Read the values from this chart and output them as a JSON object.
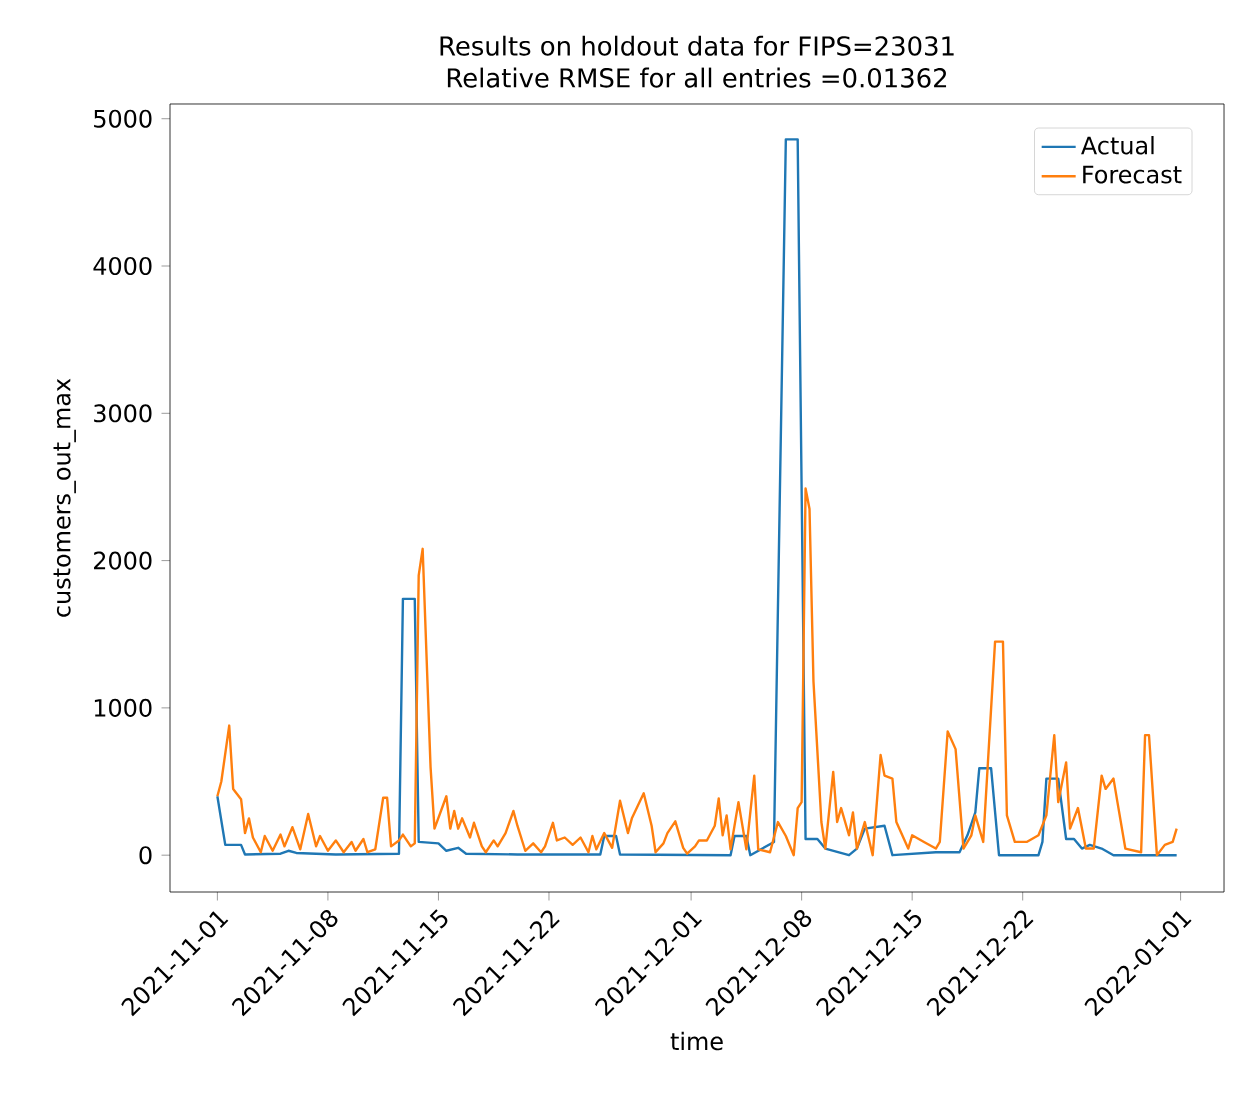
{
  "chart_data": {
    "type": "line",
    "title": "Results on holdout data for FIPS=23031",
    "subtitle": "Relative RMSE for all entries =0.01362",
    "xlabel": "time",
    "ylabel": "customers_out_max",
    "xlim": [
      "2021-10-29T00:00",
      "2022-01-03T18:00"
    ],
    "ylim": [
      -250,
      5100
    ],
    "xticks": [
      "2021-11-01",
      "2021-11-08",
      "2021-11-15",
      "2021-11-22",
      "2021-12-01",
      "2021-12-08",
      "2021-12-15",
      "2021-12-22",
      "2022-01-01"
    ],
    "yticks": [
      0,
      1000,
      2000,
      3000,
      4000,
      5000
    ],
    "legend": "top right",
    "series": [
      {
        "name": "Actual",
        "color": "#1f77b4",
        "x": [
          "2021-11-01T00:00",
          "2021-11-01T12:00",
          "2021-11-02T12:00",
          "2021-11-02T18:00",
          "2021-11-05T00:00",
          "2021-11-05T12:00",
          "2021-11-06T00:00",
          "2021-11-08T12:00",
          "2021-11-12T12:00",
          "2021-11-12T18:00",
          "2021-11-13T12:00",
          "2021-11-13T18:00",
          "2021-11-15T00:00",
          "2021-11-15T12:00",
          "2021-11-16T06:00",
          "2021-11-16T18:00",
          "2021-11-20T00:00",
          "2021-11-25T06:00",
          "2021-11-25T12:00",
          "2021-11-26T06:00",
          "2021-11-26T12:00",
          "2021-12-03T12:00",
          "2021-12-03T18:00",
          "2021-12-04T12:00",
          "2021-12-04T18:00",
          "2021-12-06T06:00",
          "2021-12-07T00:00",
          "2021-12-07T18:00",
          "2021-12-08T06:00",
          "2021-12-09T00:00",
          "2021-12-09T12:00",
          "2021-12-11T00:00",
          "2021-12-11T12:00",
          "2021-12-12T00:00",
          "2021-12-13T06:00",
          "2021-12-13T18:00",
          "2021-12-16T12:00",
          "2021-12-18T00:00",
          "2021-12-18T12:00",
          "2021-12-19T00:00",
          "2021-12-19T06:00",
          "2021-12-20T00:00",
          "2021-12-20T12:00",
          "2021-12-23T00:00",
          "2021-12-23T06:00",
          "2021-12-23T12:00",
          "2021-12-24T06:00",
          "2021-12-24T18:00",
          "2021-12-25T06:00",
          "2021-12-25T18:00",
          "2021-12-26T06:00",
          "2021-12-27T00:00",
          "2021-12-27T18:00",
          "2021-12-31T18:00"
        ],
        "values": [
          400,
          70,
          70,
          5,
          10,
          30,
          15,
          5,
          10,
          1740,
          1740,
          90,
          80,
          30,
          50,
          10,
          5,
          5,
          130,
          130,
          5,
          0,
          130,
          130,
          0,
          90,
          4860,
          4860,
          110,
          110,
          45,
          0,
          45,
          180,
          200,
          0,
          20,
          20,
          135,
          290,
          590,
          590,
          0,
          0,
          90,
          520,
          520,
          110,
          110,
          45,
          70,
          45,
          0,
          0
        ]
      },
      {
        "name": "Forecast",
        "color": "#ff7f0e",
        "x": [
          "2021-11-01T00:00",
          "2021-11-01T06:00",
          "2021-11-01T18:00",
          "2021-11-02T00:00",
          "2021-11-02T12:00",
          "2021-11-02T18:00",
          "2021-11-03T00:00",
          "2021-11-03T06:00",
          "2021-11-03T18:00",
          "2021-11-04T00:00",
          "2021-11-04T12:00",
          "2021-11-05T00:00",
          "2021-11-05T06:00",
          "2021-11-05T18:00",
          "2021-11-06T06:00",
          "2021-11-06T18:00",
          "2021-11-07T06:00",
          "2021-11-07T12:00",
          "2021-11-08T00:00",
          "2021-11-08T12:00",
          "2021-11-09T00:00",
          "2021-11-09T12:00",
          "2021-11-09T18:00",
          "2021-11-10T06:00",
          "2021-11-10T12:00",
          "2021-11-11T00:00",
          "2021-11-11T12:00",
          "2021-11-11T18:00",
          "2021-11-12T00:00",
          "2021-11-12T12:00",
          "2021-11-12T18:00",
          "2021-11-13T06:00",
          "2021-11-13T12:00",
          "2021-11-13T18:00",
          "2021-11-14T00:00",
          "2021-11-14T12:00",
          "2021-11-14T18:00",
          "2021-11-15T12:00",
          "2021-11-15T18:00",
          "2021-11-16T00:00",
          "2021-11-16T06:00",
          "2021-11-16T12:00",
          "2021-11-17T00:00",
          "2021-11-17T06:00",
          "2021-11-17T18:00",
          "2021-11-18T00:00",
          "2021-11-18T12:00",
          "2021-11-18T18:00",
          "2021-11-19T06:00",
          "2021-11-19T18:00",
          "2021-11-20T00:00",
          "2021-11-20T12:00",
          "2021-11-21T00:00",
          "2021-11-21T12:00",
          "2021-11-21T18:00",
          "2021-11-22T06:00",
          "2021-11-22T12:00",
          "2021-11-23T00:00",
          "2021-11-23T12:00",
          "2021-11-24T00:00",
          "2021-11-24T12:00",
          "2021-11-24T18:00",
          "2021-11-25T00:00",
          "2021-11-25T12:00",
          "2021-11-26T00:00",
          "2021-11-26T12:00",
          "2021-11-27T00:00",
          "2021-11-27T06:00",
          "2021-11-28T00:00",
          "2021-11-28T12:00",
          "2021-11-28T18:00",
          "2021-11-29T06:00",
          "2021-11-29T12:00",
          "2021-11-30T00:00",
          "2021-11-30T12:00",
          "2021-11-30T18:00",
          "2021-12-01T06:00",
          "2021-12-01T12:00",
          "2021-12-02T00:00",
          "2021-12-02T12:00",
          "2021-12-02T18:00",
          "2021-12-03T00:00",
          "2021-12-03T06:00",
          "2021-12-03T12:00",
          "2021-12-04T00:00",
          "2021-12-04T12:00",
          "2021-12-05T00:00",
          "2021-12-05T06:00",
          "2021-12-06T00:00",
          "2021-12-06T12:00",
          "2021-12-07T00:00",
          "2021-12-07T12:00",
          "2021-12-07T18:00",
          "2021-12-08T00:00",
          "2021-12-08T06:00",
          "2021-12-08T12:00",
          "2021-12-08T18:00",
          "2021-12-09T06:00",
          "2021-12-09T12:00",
          "2021-12-10T00:00",
          "2021-12-10T06:00",
          "2021-12-10T12:00",
          "2021-12-11T00:00",
          "2021-12-11T06:00",
          "2021-12-11T12:00",
          "2021-12-12T00:00",
          "2021-12-12T12:00",
          "2021-12-13T00:00",
          "2021-12-13T06:00",
          "2021-12-13T18:00",
          "2021-12-14T00:00",
          "2021-12-14T18:00",
          "2021-12-15T00:00",
          "2021-12-15T18:00",
          "2021-12-16T12:00",
          "2021-12-16T18:00",
          "2021-12-17T06:00",
          "2021-12-17T18:00",
          "2021-12-18T06:00",
          "2021-12-18T18:00",
          "2021-12-19T00:00",
          "2021-12-19T12:00",
          "2021-12-20T06:00",
          "2021-12-20T18:00",
          "2021-12-21T00:00",
          "2021-12-21T12:00",
          "2021-12-22T06:00",
          "2021-12-23T00:00",
          "2021-12-23T12:00",
          "2021-12-24T00:00",
          "2021-12-24T06:00",
          "2021-12-24T18:00",
          "2021-12-25T00:00",
          "2021-12-25T12:00",
          "2021-12-26T00:00",
          "2021-12-26T12:00",
          "2021-12-27T00:00",
          "2021-12-27T06:00",
          "2021-12-27T18:00",
          "2021-12-28T00:00",
          "2021-12-28T12:00",
          "2021-12-29T12:00",
          "2021-12-29T18:00",
          "2021-12-30T00:00",
          "2021-12-30T12:00",
          "2021-12-31T00:00",
          "2021-12-31T12:00",
          "2021-12-31T18:00"
        ],
        "values": [
          400,
          500,
          880,
          450,
          380,
          150,
          250,
          120,
          20,
          130,
          30,
          140,
          60,
          190,
          40,
          280,
          60,
          130,
          30,
          100,
          20,
          90,
          30,
          110,
          20,
          40,
          390,
          390,
          60,
          100,
          140,
          60,
          80,
          1900,
          2080,
          600,
          180,
          400,
          180,
          300,
          180,
          250,
          120,
          220,
          60,
          20,
          100,
          60,
          150,
          300,
          200,
          30,
          80,
          20,
          60,
          220,
          100,
          120,
          70,
          120,
          20,
          130,
          40,
          150,
          50,
          370,
          150,
          250,
          420,
          200,
          20,
          80,
          150,
          230,
          50,
          10,
          60,
          100,
          100,
          200,
          385,
          135,
          270,
          40,
          360,
          40,
          540,
          40,
          20,
          225,
          130,
          0,
          320,
          360,
          2490,
          2350,
          1180,
          225,
          45,
          565,
          225,
          320,
          135,
          290,
          45,
          225,
          0,
          680,
          540,
          520,
          225,
          45,
          135,
          90,
          45,
          90,
          840,
          720,
          45,
          135,
          270,
          90,
          1450,
          1450,
          270,
          90,
          90,
          135,
          270,
          815,
          360,
          630,
          180,
          320,
          45,
          45,
          540,
          450,
          520,
          360,
          45,
          20,
          815,
          815,
          0,
          70,
          90,
          180
        ]
      }
    ]
  }
}
